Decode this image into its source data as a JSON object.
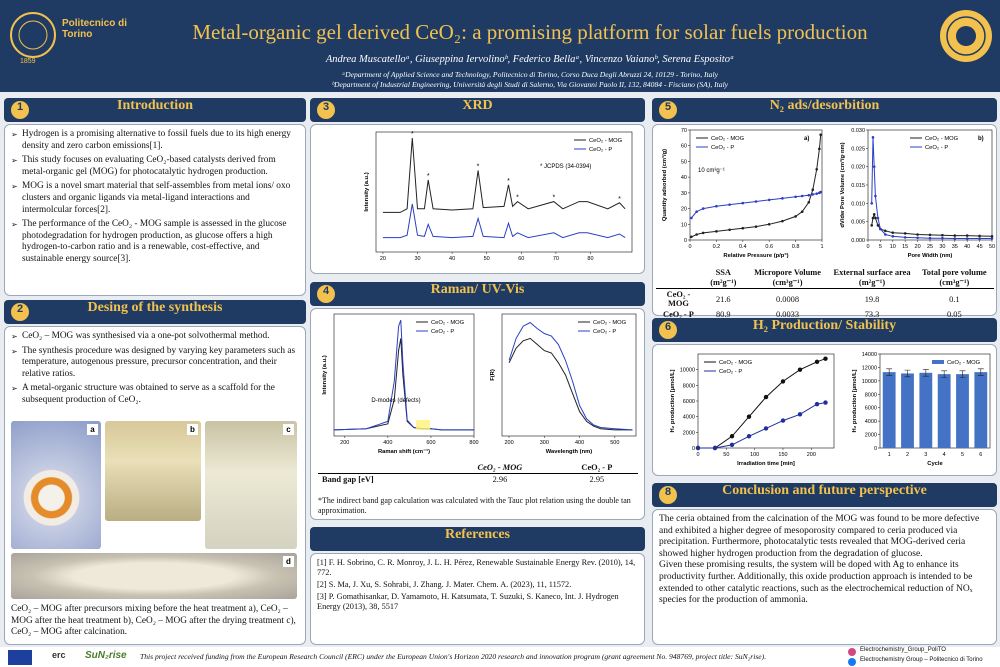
{
  "header": {
    "institution": "Politecnico di Torino",
    "founded": "1859",
    "title": "Metal-organic gel derived CeO₂: a promising platform for solar fuels production",
    "authors": "Andrea Muscatelloᵃ, Giuseppina Iervolinoᵇ, Federico Bellaᵃ, Vincenzo Vaianoᵇ, Serena Espositoᵃ",
    "affiliations": [
      "ᵃDepartment of Applied Science and Technology, Politecnico di Torino, Corso Duca Degli Abruzzi 24, 10129 - Torino, Italy",
      "ᵇDepartment of Industrial Engineering, Università degli Studi di Salerno, Via Giovanni Paolo II, 132, 84084 - Fisciano (SA), Italy"
    ]
  },
  "introduction": {
    "number": 1,
    "title": "Introduction",
    "bullets": [
      "Hydrogen is a promising alternative to fossil fuels due to its high energy density and zero carbon emissions[1].",
      "This study focuses on evaluating CeO₂-based catalysts derived from metal-organic gel (MOG) for photocatalytic hydrogen production.",
      "MOG is a novel smart material that self-assembles from metal ions/ oxo clusters and organic ligands via metal-ligand interactions and intermolcular forces[2].",
      "The performance of the  CeO₂ - MOG sample is assessed in the glucose photodegradation for hydrogen production, as glucose offers a high hydrogen-to-carbon ratio and is a renewable, cost-effective, and sustainable energy source[3]."
    ]
  },
  "synthesis": {
    "number": 2,
    "title": "Desing of the synthesis",
    "bullets": [
      "CeO₂ – MOG was synthesised via a one-pot solvothermal method.",
      "The synthesis procedure was designed by varying key parameters such as temperature, autogenous pressure, precursor concentration, and their relative ratios.",
      "A metal-organic structure was obtained to serve as a scaffold for the subsequent production of CeO₂."
    ],
    "photo_labels": [
      "a",
      "b",
      "c",
      "d"
    ],
    "caption": "CeO₂ – MOG after precursors mixing before the heat treatment a), CeO₂ – MOG after the heat treatment b), CeO₂ – MOG after the drying treatment c), CeO₂ – MOG after calcination."
  },
  "xrd": {
    "number": 3,
    "title": "XRD"
  },
  "raman": {
    "number": 4,
    "title": "Raman/ UV-Vis",
    "band_gap_table": {
      "header": [
        "CeO₂ - MOG",
        "CeO₂ - P"
      ],
      "row_label": "Band gap [eV]",
      "values": [
        2.96,
        2.95
      ]
    },
    "note": "*The indirect band gap calculation was calculated with the Tauc plot relation using the double tan approximation."
  },
  "references": {
    "title": "References",
    "items": [
      "[1] F. H. Sobrino, C. R. Monroy, J. L. H. Pérez, Renewable Sustainable Energy Rev. (2010), 14, 772.",
      "[2] S. Ma, J. Xu, S. Sohrabi, J. Zhang. J. Mater. Chem. A. (2023), 11, 11572.",
      "[3] P. Gomathisankar, D. Yamamoto, H. Katsumata, T. Suzuki, S. Kaneco, Int. J. Hydrogen Energy (2013), 38, 5517"
    ]
  },
  "n2": {
    "number": 5,
    "title": "N₂ ads/desorbition",
    "table": {
      "header": [
        "SSA (m²g⁻¹)",
        "Micropore Volume (cm³g⁻¹)",
        "External surface area (m²g⁻¹)",
        "Total pore volume (cm³g⁻¹)"
      ],
      "rows": [
        {
          "label": "CeO₂ - MOG",
          "values": [
            21.6,
            0.0008,
            19.8,
            0.1
          ]
        },
        {
          "label": "CeO₂ - P",
          "values": [
            80.9,
            0.0033,
            73.3,
            0.05
          ]
        }
      ]
    }
  },
  "h2": {
    "number": 6,
    "title": "H₂ Production/ Stability"
  },
  "conclusion": {
    "number": 8,
    "title": "Conclusion and future perspective",
    "paragraphs": [
      "The ceria obtained from the calcination of the MOG was found to be more defective and exhibited a higher degree of mesoporosity compared to ceria produced via precipitation. Furthermore, photocatalytic tests revealed that MOG-derived ceria showed higher hydrogen production from the degradation of glucose.",
      "Given these promising results, the system will be doped with Ag to enhance its productivity further. Additionally, this oxide production approach is intended to be extended to other catalytic reactions, such as the electrochemical reduction of NOₓ species for the production of ammonia."
    ]
  },
  "footer": {
    "logos": [
      "erc",
      "SuN₂rise"
    ],
    "funding": "This project received funding from the European Research Council (ERC) under the European Union's Horizon 2020 research and innovation program (grant agreement No. 948769, project title: SuN₂rise).",
    "social": [
      "Electrochemistry_Group_PoliTO",
      "Electrochemistry Group – Politecnico di Torino"
    ]
  },
  "chart_data": [
    {
      "type": "line",
      "ylabel": "Intensity (a.u.)",
      "x": [
        20,
        25,
        27,
        28.5,
        30,
        32,
        33.1,
        34.5,
        40,
        46,
        47.5,
        49,
        55,
        56.3,
        57.5,
        58.9,
        62,
        69.4,
        72,
        76.7,
        79.1,
        85,
        88.4,
        90
      ],
      "series": [
        {
          "name": "CeO₂ - MOG",
          "color": "#222222",
          "values": [
            0.33,
            0.33,
            0.36,
            0.95,
            0.36,
            0.36,
            0.6,
            0.36,
            0.35,
            0.36,
            0.68,
            0.37,
            0.38,
            0.56,
            0.38,
            0.42,
            0.36,
            0.42,
            0.36,
            0.42,
            0.42,
            0.36,
            0.41,
            0.36
          ]
        },
        {
          "name": "CeO₂ - P",
          "color": "#2b3fc4",
          "values": [
            0.12,
            0.12,
            0.14,
            0.4,
            0.14,
            0.13,
            0.23,
            0.13,
            0.12,
            0.13,
            0.28,
            0.13,
            0.12,
            0.24,
            0.13,
            0.16,
            0.12,
            0.16,
            0.12,
            0.16,
            0.16,
            0.12,
            0.15,
            0.12
          ]
        }
      ],
      "xlim": [
        18,
        92
      ],
      "ylim": [
        0,
        1
      ],
      "xticks": [
        20,
        30,
        40,
        50,
        60,
        70,
        80
      ],
      "legend": "upper right",
      "peak_marker": "*",
      "annotations": [
        "* JCPDS (34-0394)"
      ]
    },
    {
      "type": "line",
      "xlabel": "Raman shift (cm⁻¹)",
      "ylabel": "Intensity (a.u.)",
      "x": [
        150,
        300,
        400,
        430,
        450,
        460,
        470,
        490,
        520,
        560,
        600,
        650,
        800
      ],
      "series": [
        {
          "name": "CeO₂ - MOG",
          "color": "#222222",
          "values": [
            0.05,
            0.06,
            0.1,
            0.3,
            0.7,
            0.8,
            0.5,
            0.12,
            0.07,
            0.06,
            0.06,
            0.05,
            0.05
          ]
        },
        {
          "name": "CeO₂ - P",
          "color": "#2b3fc4",
          "values": [
            0.05,
            0.06,
            0.12,
            0.45,
            0.9,
            0.95,
            0.6,
            0.13,
            0.07,
            0.06,
            0.06,
            0.05,
            0.05
          ]
        }
      ],
      "xlim": [
        150,
        800
      ],
      "ylim": [
        0,
        1
      ],
      "xticks": [
        200,
        400,
        600,
        800
      ],
      "legend": "upper right",
      "annotations": [
        "D-modes (defects)"
      ]
    },
    {
      "type": "line",
      "xlabel": "Wavelength (nm)",
      "ylabel": "F(R)",
      "x": [
        200,
        220,
        240,
        260,
        280,
        300,
        320,
        340,
        360,
        380,
        400,
        420,
        440,
        460,
        500,
        550
      ],
      "series": [
        {
          "name": "CeO₂ - MOG",
          "color": "#222222",
          "values": [
            0.6,
            0.72,
            0.78,
            0.8,
            0.75,
            0.7,
            0.68,
            0.6,
            0.5,
            0.35,
            0.2,
            0.12,
            0.08,
            0.06,
            0.05,
            0.05
          ]
        },
        {
          "name": "CeO₂ - P",
          "color": "#2b3fc4",
          "values": [
            0.62,
            0.8,
            0.9,
            0.93,
            0.88,
            0.84,
            0.82,
            0.75,
            0.62,
            0.45,
            0.25,
            0.14,
            0.09,
            0.07,
            0.06,
            0.05
          ]
        }
      ],
      "xlim": [
        180,
        560
      ],
      "ylim": [
        0,
        1
      ],
      "xticks": [
        200,
        300,
        400,
        500
      ],
      "legend": "upper right",
      "annotations": []
    },
    {
      "type": "line",
      "xlabel": "Relative Pressure (p/p°)",
      "ylabel": "Quantity adsorbed (cm³/g)",
      "x": [
        0.01,
        0.05,
        0.1,
        0.2,
        0.3,
        0.4,
        0.5,
        0.6,
        0.7,
        0.8,
        0.85,
        0.9,
        0.93,
        0.96,
        0.98,
        0.99
      ],
      "series": [
        {
          "name": "CeO₂ - MOG",
          "color": "#222222",
          "values": [
            2,
            3.5,
            4.5,
            5.5,
            6.5,
            7.5,
            8.5,
            10,
            12,
            15,
            18,
            24,
            32,
            45,
            58,
            67
          ]
        },
        {
          "name": "CeO₂ - P",
          "color": "#2b3fc4",
          "values": [
            14,
            18,
            20,
            21.5,
            22.5,
            23.5,
            24.5,
            25.5,
            26.5,
            27.5,
            28,
            28.5,
            29,
            29.5,
            30,
            30.5
          ]
        }
      ],
      "xlim": [
        0,
        1
      ],
      "ylim": [
        0,
        70
      ],
      "xticks": [
        0,
        0.2,
        0.4,
        0.6,
        0.8,
        1
      ],
      "yticks": [
        0,
        10,
        20,
        30,
        40,
        50,
        60,
        70
      ],
      "markers": true,
      "legend": "upper left",
      "annotations": [
        "a)",
        "10 cm³g⁻¹"
      ]
    },
    {
      "type": "line",
      "xlabel": "Pore Width (nm)",
      "ylabel": "dV/dw Pore Volume (cm³/g·nm)",
      "x": [
        1.5,
        2,
        2.5,
        3,
        4,
        5,
        7,
        10,
        15,
        20,
        25,
        30,
        35,
        40,
        45,
        50
      ],
      "series": [
        {
          "name": "CeO₂ - MOG",
          "color": "#222222",
          "values": [
            0.004,
            0.006,
            0.007,
            0.006,
            0.004,
            0.003,
            0.0025,
            0.002,
            0.0018,
            0.0015,
            0.0014,
            0.0013,
            0.0012,
            0.0012,
            0.0011,
            0.001
          ]
        },
        {
          "name": "CeO₂ - P",
          "color": "#2b3fc4",
          "values": [
            0.01,
            0.028,
            0.02,
            0.012,
            0.006,
            0.003,
            0.0015,
            0.001,
            0.0007,
            0.0006,
            0.0005,
            0.0005,
            0.0004,
            0.0004,
            0.0004,
            0.0004
          ]
        }
      ],
      "xlim": [
        0,
        50
      ],
      "ylim": [
        0,
        0.03
      ],
      "xticks": [
        0,
        5,
        10,
        15,
        20,
        25,
        30,
        35,
        40,
        45,
        50
      ],
      "yticks": [
        {
          "value": 0,
          "label": "0.000"
        },
        0.005,
        {
          "value": 0.01,
          "label": "0.010"
        },
        0.015,
        {
          "value": 0.02,
          "label": "0.020"
        },
        0.025,
        {
          "value": 0.03,
          "label": "0.030"
        }
      ],
      "markers": true,
      "legend": "upper center",
      "annotations": [
        "b)"
      ]
    },
    {
      "type": "line",
      "xlabel": "Irradiation time [min]",
      "ylabel": "H₂ production [µmol/L]",
      "x": [
        0,
        30,
        60,
        90,
        120,
        150,
        180,
        210,
        225
      ],
      "series": [
        {
          "name": "CeO₂ - MOG",
          "color": "#111111",
          "values": [
            0,
            0,
            1500,
            4000,
            6500,
            8500,
            10000,
            11000,
            11400
          ]
        },
        {
          "name": "CeO₂ - P",
          "color": "#1f2f9c",
          "values": [
            0,
            0,
            400,
            1500,
            2500,
            3500,
            4300,
            5600,
            5800
          ]
        }
      ],
      "xlim": [
        0,
        240
      ],
      "ylim": [
        0,
        12000
      ],
      "xticks": [
        0,
        50,
        100,
        150,
        200
      ],
      "yticks": [
        0,
        2000,
        4000,
        6000,
        8000,
        10000
      ],
      "markers": true,
      "legend": "upper left",
      "annotations": []
    },
    {
      "type": "bar",
      "xlabel": "Cycle",
      "ylabel": "H₂ production [µmol/L]",
      "categories": [
        "1",
        "2",
        "3",
        "4",
        "5",
        "6"
      ],
      "series": [
        {
          "name": "CeO₂ - MOG",
          "color": "#4472c4",
          "values": [
            11300,
            11100,
            11200,
            11000,
            11000,
            11300
          ],
          "errors": [
            500,
            500,
            500,
            500,
            500,
            500
          ]
        }
      ],
      "ylim": [
        0,
        14000
      ],
      "yticks": [
        0,
        2000,
        4000,
        6000,
        8000,
        10000,
        12000,
        14000
      ],
      "legend": "upper right",
      "annotations": []
    }
  ]
}
